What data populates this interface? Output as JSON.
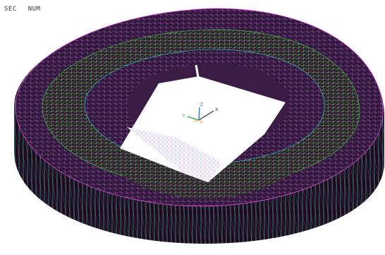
{
  "status_bar": {
    "items": [
      "SEC",
      "NUM"
    ]
  },
  "triad": {
    "axes": [
      {
        "label": "X",
        "color": "#333333"
      },
      {
        "label": "Y",
        "color": "#2aa84a"
      },
      {
        "label": "Z",
        "color": "#2a6fd6"
      }
    ]
  },
  "colors": {
    "background": "#ffffff",
    "wire_cyan": "#2fd3d3",
    "wire_magenta": "#e04ce0",
    "wire_yellow": "#d8d84a",
    "wire_green": "#3fd64a",
    "dark_fill": "#1c0c18",
    "roof_fill": "#3a1c44"
  }
}
